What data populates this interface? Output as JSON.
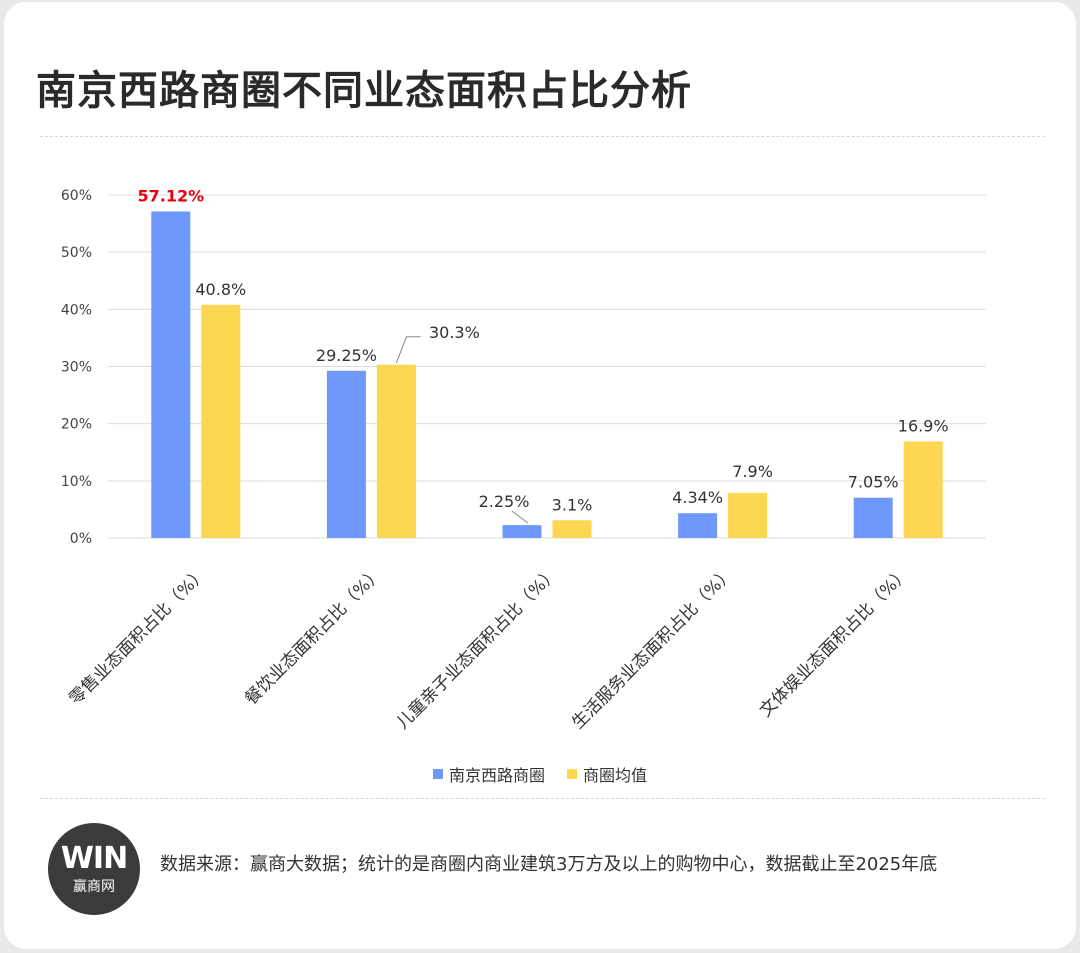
{
  "title": "南京西路商圈不同业态面积占比分析",
  "colors": {
    "series_a": "#6E98FB",
    "series_b": "#FDD751",
    "highlight": "#E60012",
    "grid": "#dcdcdc"
  },
  "chart_data": {
    "type": "bar",
    "categories": [
      "零售业态面积占比（%）",
      "餐饮业态面积占比（%）",
      "儿童亲子业态面积占比（%）",
      "生活服务业态面积占比（%）",
      "文体娱业态面积占比（%）"
    ],
    "series": [
      {
        "name": "南京西路商圈",
        "values": [
          57.12,
          29.25,
          2.25,
          4.34,
          7.05
        ],
        "labels": [
          "57.12%",
          "29.25%",
          "2.25%",
          "4.34%",
          "7.05%"
        ]
      },
      {
        "name": "商圈均值",
        "values": [
          40.8,
          30.3,
          3.1,
          7.9,
          16.9
        ],
        "labels": [
          "40.8%",
          "30.3%",
          "3.1%",
          "7.9%",
          "16.9%"
        ]
      }
    ],
    "highlight_label": "57.12%",
    "yticks": [
      "0%",
      "10%",
      "20%",
      "30%",
      "40%",
      "50%",
      "60%"
    ],
    "ylim": [
      0,
      60
    ],
    "grid": true,
    "legend_position": "bottom"
  },
  "legend": [
    "南京西路商圈",
    "商圈均值"
  ],
  "logo": {
    "mark": "WIN",
    "name": "赢商网"
  },
  "source": "数据来源：赢商大数据；统计的是商圈内商业建筑3万方及以上的购物中心，数据截止至2025年底"
}
